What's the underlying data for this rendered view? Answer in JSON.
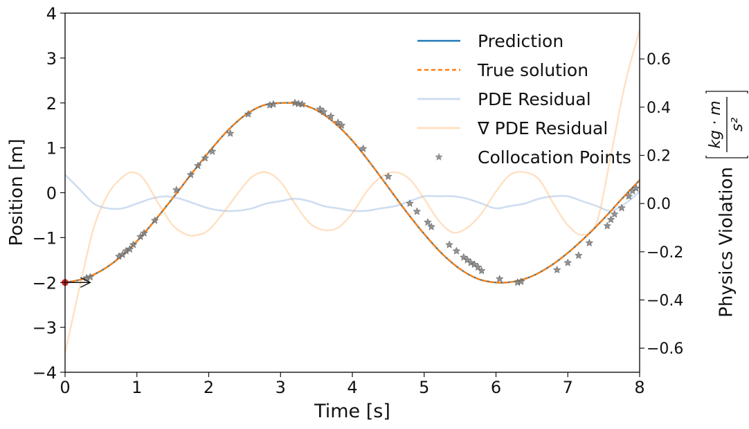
{
  "chart_data": {
    "type": "line",
    "xlabel": "Time [s]",
    "ylabel_left": "Position [m]",
    "ylabel_right": "Physics Violation",
    "ylabel_right_unit": {
      "num": "kg · m",
      "den": "s²"
    },
    "xlim": [
      0,
      8
    ],
    "ylim_left": [
      -4,
      4
    ],
    "ylim_right": [
      -0.7,
      0.79
    ],
    "x_ticks": [
      0,
      1,
      2,
      3,
      4,
      5,
      6,
      7,
      8
    ],
    "y_ticks_left": [
      -4,
      -3,
      -2,
      -1,
      0,
      1,
      2,
      3,
      4
    ],
    "y_ticks_right": [
      -0.6,
      -0.4,
      -0.2,
      0.0,
      0.2,
      0.4,
      0.6
    ],
    "y_tick_labels_left": [
      "−4",
      "−3",
      "−2",
      "−1",
      "0",
      "1",
      "2",
      "3",
      "4"
    ],
    "y_tick_labels_right": [
      "−0.6",
      "−0.4",
      "−0.2",
      "0.0",
      "0.2",
      "0.4",
      "0.6"
    ],
    "grid": false,
    "legend_position": "top-right",
    "colors": {
      "prediction": "#1f77b4",
      "true_solution": "#ff7f0e",
      "pde_residual": "#aec7e8",
      "grad_pde_residual": "#ffbb78",
      "collocation": "#7f7f7f",
      "initial_point": "#d62728"
    },
    "series": [
      {
        "name": "Prediction",
        "axis": "left",
        "x": [
          0,
          0.25,
          0.5,
          0.75,
          1,
          1.25,
          1.5,
          1.75,
          2,
          2.25,
          2.5,
          2.75,
          3,
          3.25,
          3.5,
          3.75,
          4,
          4.25,
          4.5,
          4.75,
          5,
          5.25,
          5.5,
          5.75,
          6,
          6.25,
          6.5,
          6.75,
          7,
          7.25,
          7.5,
          7.75,
          8
        ],
        "y": [
          -2.0,
          -1.92,
          -1.74,
          -1.46,
          -1.08,
          -0.62,
          -0.12,
          0.4,
          0.9,
          1.36,
          1.72,
          1.94,
          2.0,
          1.98,
          1.84,
          1.56,
          1.16,
          0.66,
          0.12,
          -0.42,
          -0.92,
          -1.36,
          -1.7,
          -1.92,
          -2.0,
          -1.98,
          -1.86,
          -1.64,
          -1.34,
          -0.98,
          -0.58,
          -0.14,
          0.28
        ]
      },
      {
        "name": "True solution",
        "axis": "left",
        "x": [
          0,
          0.25,
          0.5,
          0.75,
          1,
          1.25,
          1.5,
          1.75,
          2,
          2.25,
          2.5,
          2.75,
          3,
          3.25,
          3.5,
          3.75,
          4,
          4.25,
          4.5,
          4.75,
          5,
          5.25,
          5.5,
          5.75,
          6,
          6.25,
          6.5,
          6.75,
          7,
          7.25,
          7.5,
          7.75,
          8
        ],
        "y": [
          -2.0,
          -1.92,
          -1.74,
          -1.46,
          -1.08,
          -0.62,
          -0.12,
          0.4,
          0.9,
          1.36,
          1.72,
          1.94,
          2.0,
          1.98,
          1.84,
          1.56,
          1.16,
          0.66,
          0.12,
          -0.42,
          -0.92,
          -1.36,
          -1.7,
          -1.92,
          -2.0,
          -1.98,
          -1.86,
          -1.64,
          -1.34,
          -0.98,
          -0.58,
          -0.14,
          0.28
        ]
      },
      {
        "name": "PDE Residual",
        "axis": "right",
        "x": [
          0,
          0.2,
          0.4,
          0.6,
          0.8,
          1.0,
          1.2,
          1.4,
          1.6,
          1.8,
          2.0,
          2.2,
          2.4,
          2.6,
          2.8,
          3.0,
          3.2,
          3.4,
          3.6,
          3.8,
          4.0,
          4.2,
          4.4,
          4.6,
          4.8,
          5.0,
          5.2,
          5.4,
          5.6,
          5.8,
          6.0,
          6.2,
          6.4,
          6.6,
          6.8,
          7.0,
          7.2,
          7.4,
          7.6,
          7.8,
          8.0
        ],
        "y": [
          0.12,
          0.06,
          0.0,
          -0.02,
          -0.02,
          0.0,
          0.02,
          0.03,
          0.02,
          0.0,
          -0.02,
          -0.03,
          -0.03,
          -0.02,
          0.0,
          0.01,
          0.02,
          0.01,
          -0.01,
          -0.02,
          -0.03,
          -0.03,
          -0.02,
          -0.01,
          0.01,
          0.03,
          0.03,
          0.03,
          0.02,
          0.0,
          -0.02,
          -0.01,
          0.0,
          0.02,
          0.03,
          0.03,
          0.01,
          -0.01,
          -0.03,
          0.0,
          0.05
        ]
      },
      {
        "name": "∇ PDE Residual",
        "axis": "right",
        "x": [
          0,
          0.2,
          0.4,
          0.6,
          0.8,
          0.95,
          1.1,
          1.3,
          1.5,
          1.7,
          1.85,
          2.0,
          2.2,
          2.4,
          2.6,
          2.8,
          3.0,
          3.2,
          3.4,
          3.6,
          3.8,
          4.0,
          4.2,
          4.4,
          4.6,
          4.8,
          5.0,
          5.2,
          5.4,
          5.6,
          5.8,
          6.0,
          6.2,
          6.4,
          6.6,
          6.8,
          7.0,
          7.2,
          7.4,
          7.6,
          7.8,
          8.0
        ],
        "y": [
          -0.62,
          -0.35,
          -0.1,
          0.04,
          0.11,
          0.13,
          0.1,
          0.0,
          -0.09,
          -0.13,
          -0.13,
          -0.11,
          -0.04,
          0.04,
          0.11,
          0.13,
          0.09,
          0.0,
          -0.08,
          -0.11,
          -0.1,
          -0.04,
          0.05,
          0.11,
          0.13,
          0.1,
          0.02,
          -0.07,
          -0.12,
          -0.1,
          -0.04,
          0.05,
          0.12,
          0.13,
          0.1,
          0.0,
          -0.09,
          -0.13,
          -0.08,
          0.2,
          0.5,
          0.72
        ]
      }
    ],
    "collocation_points": {
      "name": "Collocation Points",
      "x": [
        0.3,
        0.35,
        0.75,
        0.8,
        0.85,
        0.9,
        0.95,
        1.05,
        1.1,
        1.25,
        1.55,
        1.75,
        1.85,
        1.95,
        2.05,
        2.3,
        2.55,
        2.85,
        2.9,
        3.2,
        3.25,
        3.3,
        3.55,
        3.6,
        3.7,
        3.8,
        3.85,
        4.15,
        4.5,
        4.8,
        4.9,
        5.05,
        5.1,
        5.35,
        5.45,
        5.55,
        5.6,
        5.65,
        5.7,
        5.75,
        5.8,
        6.05,
        6.3,
        6.35,
        6.85,
        7.0,
        7.15,
        7.3,
        7.55,
        7.6,
        7.65,
        7.75,
        7.85,
        7.9,
        7.95
      ],
      "y": [
        -1.9,
        -1.88,
        -1.42,
        -1.38,
        -1.3,
        -1.26,
        -1.16,
        -0.98,
        -0.9,
        -0.62,
        0.06,
        0.4,
        0.6,
        0.77,
        0.92,
        1.32,
        1.75,
        1.95,
        1.97,
        2.0,
        1.98,
        1.97,
        1.86,
        1.8,
        1.7,
        1.56,
        1.5,
        0.98,
        0.36,
        -0.24,
        -0.42,
        -0.66,
        -0.76,
        -1.16,
        -1.3,
        -1.44,
        -1.5,
        -1.56,
        -1.6,
        -1.66,
        -1.74,
        -1.92,
        -2.0,
        -1.98,
        -1.72,
        -1.56,
        -1.4,
        -1.12,
        -0.74,
        -0.6,
        -0.48,
        -0.34,
        -0.08,
        0.04,
        0.1
      ]
    },
    "initial_point": {
      "x": 0,
      "y": -2
    },
    "initial_velocity_arrow": {
      "x_start": 0,
      "x_end": 0.35,
      "y": -2
    }
  },
  "legend": [
    {
      "key": "prediction",
      "label": "Prediction",
      "style": "solid"
    },
    {
      "key": "true_solution",
      "label": "True solution",
      "style": "dashed"
    },
    {
      "key": "pde_residual",
      "label": "PDE Residual",
      "style": "faint"
    },
    {
      "key": "grad_pde_residual",
      "label": "∇ PDE Residual",
      "style": "faint"
    },
    {
      "key": "collocation",
      "label": "Collocation Points",
      "style": "star"
    }
  ]
}
